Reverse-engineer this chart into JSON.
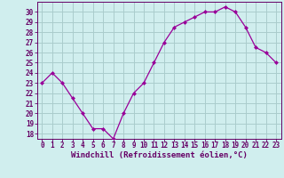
{
  "x": [
    0,
    1,
    2,
    3,
    4,
    5,
    6,
    7,
    8,
    9,
    10,
    11,
    12,
    13,
    14,
    15,
    16,
    17,
    18,
    19,
    20,
    21,
    22,
    23
  ],
  "y": [
    23,
    24,
    23,
    21.5,
    20,
    18.5,
    18.5,
    17.5,
    20,
    22,
    23,
    25,
    27,
    28.5,
    29,
    29.5,
    30,
    30,
    30.5,
    30,
    28.5,
    26.5,
    26,
    25
  ],
  "line_color": "#990099",
  "marker": "D",
  "marker_size": 2.0,
  "bg_color": "#d0eeee",
  "grid_color": "#aacccc",
  "xlabel": "Windchill (Refroidissement éolien,°C)",
  "xlabel_color": "#660066",
  "xlabel_fontsize": 6.5,
  "tick_color": "#660066",
  "tick_fontsize": 5.5,
  "ylim": [
    17.5,
    31
  ],
  "xlim": [
    -0.5,
    23.5
  ],
  "yticks": [
    18,
    19,
    20,
    21,
    22,
    23,
    24,
    25,
    26,
    27,
    28,
    29,
    30
  ],
  "xticks": [
    0,
    1,
    2,
    3,
    4,
    5,
    6,
    7,
    8,
    9,
    10,
    11,
    12,
    13,
    14,
    15,
    16,
    17,
    18,
    19,
    20,
    21,
    22,
    23
  ]
}
